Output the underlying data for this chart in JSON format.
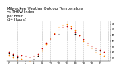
{
  "title": "Milwaukee Weather Outdoor Temperature\nvs THSW Index\nper Hour\n(24 Hours)",
  "title_fontsize": 3.8,
  "background_color": "#ffffff",
  "grid_color": "#aaaaaa",
  "ylim": [
    22,
    57
  ],
  "xlim": [
    -0.5,
    24.5
  ],
  "hours": [
    0,
    1,
    2,
    3,
    4,
    5,
    6,
    7,
    8,
    9,
    10,
    11,
    12,
    13,
    14,
    15,
    16,
    17,
    18,
    19,
    20,
    21,
    22,
    23
  ],
  "temp": [
    30,
    28,
    26,
    27,
    26,
    25,
    26,
    28,
    33,
    38,
    42,
    46,
    50,
    52,
    53,
    51,
    48,
    45,
    41,
    38,
    35,
    33,
    32,
    30
  ],
  "thsw": [
    27,
    25,
    23,
    24,
    23,
    22,
    23,
    26,
    31,
    37,
    42,
    47,
    52,
    54,
    55,
    53,
    49,
    45,
    40,
    36,
    33,
    30,
    28,
    26
  ],
  "extra": [
    29,
    29,
    25,
    null,
    null,
    null,
    null,
    null,
    null,
    null,
    null,
    null,
    45,
    null,
    null,
    null,
    null,
    null,
    null,
    null,
    33,
    null,
    null,
    null
  ],
  "temp_color": "#cc0000",
  "thsw_color": "#ff8800",
  "extra_color": "#000000",
  "marker_size": 1.5,
  "line_width": 0.0,
  "tick_fontsize": 3.0,
  "yticks": [
    25,
    30,
    35,
    40,
    45,
    50,
    55
  ],
  "xtick_step": 2,
  "vgrid_hours": [
    2,
    4,
    6,
    8,
    10,
    12,
    14,
    16,
    18,
    20,
    22,
    24
  ]
}
